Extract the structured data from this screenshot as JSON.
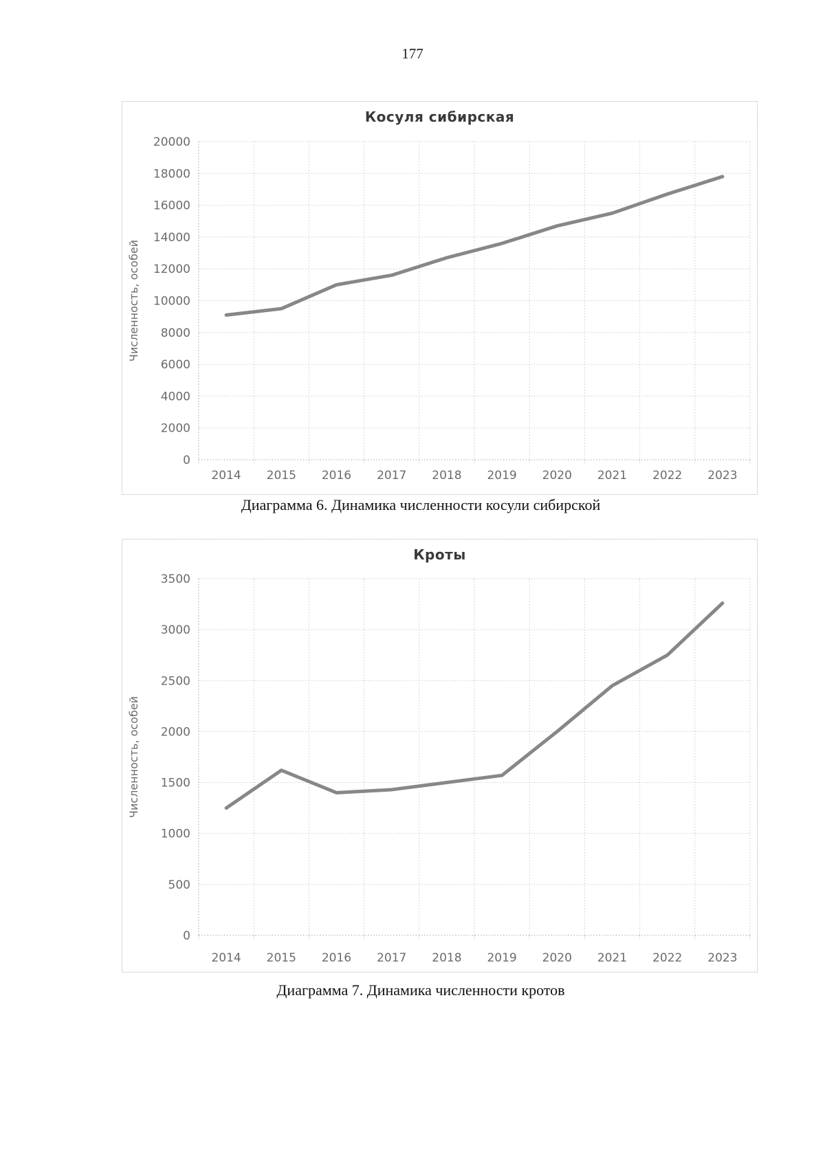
{
  "page": {
    "number": "177"
  },
  "figures": [
    {
      "title": "Косуля сибирская",
      "caption": "Диаграмма 6. Динамика численности косули сибирской"
    },
    {
      "title": "Кроты",
      "caption": "Диаграмма 7. Динамика численности кротов"
    }
  ],
  "chart_data": [
    {
      "type": "line",
      "title": "Косуля сибирская",
      "categories": [
        "2014",
        "2015",
        "2016",
        "2017",
        "2018",
        "2019",
        "2020",
        "2021",
        "2022",
        "2023"
      ],
      "values": [
        9100,
        9500,
        11000,
        11600,
        12700,
        13600,
        14700,
        15500,
        16700,
        17800
      ],
      "xlabel": "",
      "ylabel": "Численность, особей",
      "ylim": [
        0,
        20000
      ],
      "ytick_step": 2000,
      "grid": true,
      "legend": "none",
      "line_color": "#878787"
    },
    {
      "type": "line",
      "title": "Кроты",
      "categories": [
        "2014",
        "2015",
        "2016",
        "2017",
        "2018",
        "2019",
        "2020",
        "2021",
        "2022",
        "2023"
      ],
      "values": [
        1250,
        1620,
        1400,
        1430,
        1500,
        1570,
        2000,
        2450,
        2750,
        3260
      ],
      "xlabel": "",
      "ylabel": "Численность, особей",
      "ylim": [
        0,
        3500
      ],
      "ytick_step": 500,
      "grid": true,
      "legend": "none",
      "line_color": "#878787"
    }
  ]
}
